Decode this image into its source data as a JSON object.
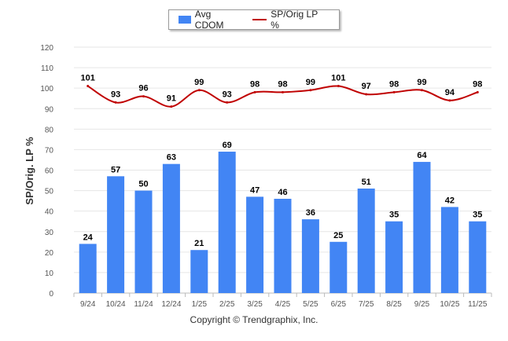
{
  "colors": {
    "bar": "#4285f4",
    "line": "#c00000",
    "grid": "#e6e6e6",
    "axis": "#555555"
  },
  "legend": {
    "bar_label": "Avg CDOM",
    "line_label": "SP/Orig LP %"
  },
  "footer": {
    "copyright": "Copyright © Trendgraphix, Inc."
  },
  "chart_data": {
    "type": "bar",
    "title": "",
    "xlabel": "",
    "ylabel": "SP/Orig. LP %",
    "ylim": [
      0,
      120
    ],
    "yticks": [
      0,
      10,
      20,
      30,
      40,
      50,
      60,
      70,
      80,
      90,
      100,
      110,
      120
    ],
    "grid": true,
    "legend_position": "top-center",
    "categories": [
      "9/24",
      "10/24",
      "11/24",
      "12/24",
      "1/25",
      "2/25",
      "3/25",
      "4/25",
      "5/25",
      "6/25",
      "7/25",
      "8/25",
      "9/25",
      "10/25",
      "11/25"
    ],
    "series": [
      {
        "name": "Avg CDOM",
        "type": "bar",
        "values": [
          24,
          57,
          50,
          63,
          21,
          69,
          47,
          46,
          36,
          25,
          51,
          35,
          64,
          42,
          35
        ]
      },
      {
        "name": "SP/Orig LP %",
        "type": "line",
        "values": [
          101,
          93,
          96,
          91,
          99,
          93,
          98,
          98,
          99,
          101,
          97,
          98,
          99,
          94,
          98
        ]
      }
    ]
  }
}
